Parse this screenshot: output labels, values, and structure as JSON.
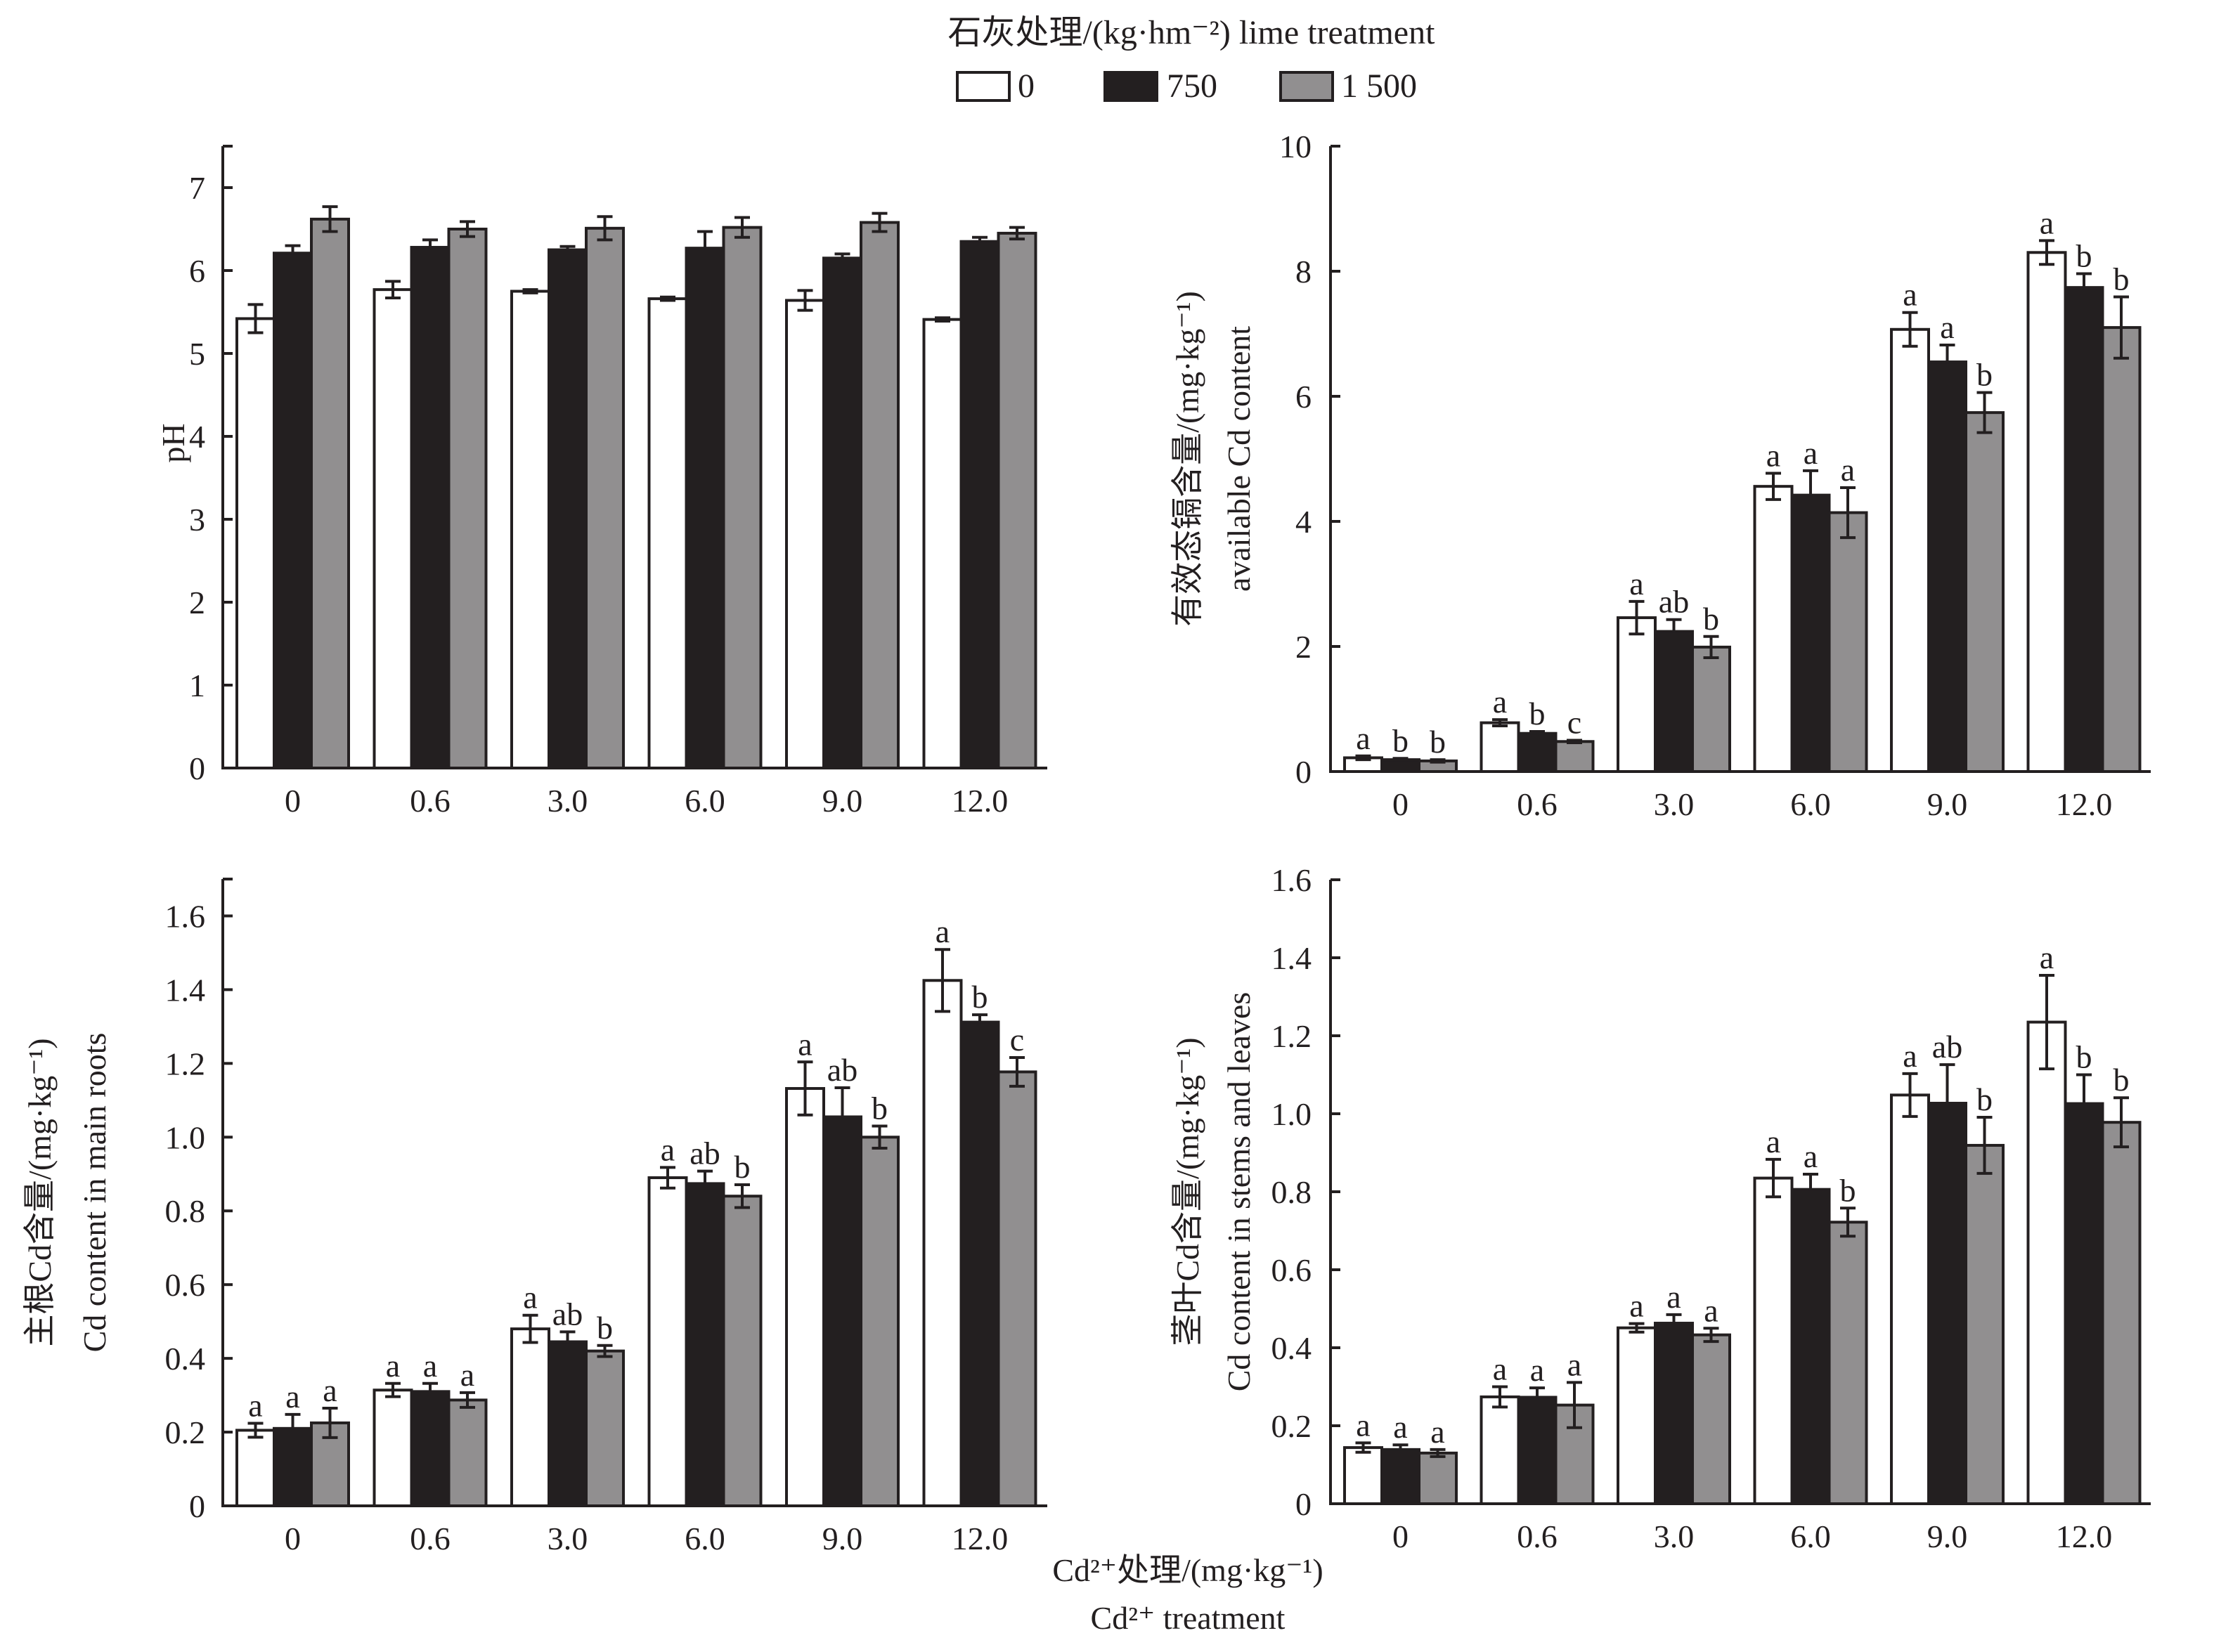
{
  "legend": {
    "title": "石灰处理/(kg·hm⁻²) lime treatment",
    "entries": [
      {
        "label": "0",
        "color": "#ffffff"
      },
      {
        "label": "750",
        "color": "#231f20"
      },
      {
        "label": "1 500",
        "color": "#918f90"
      }
    ]
  },
  "shared_xlabel": {
    "line1": "Cd²⁺处理/(mg·kg⁻¹)",
    "line2": "Cd²⁺ treatment"
  },
  "chart_data": [
    {
      "type": "bar",
      "panel": "top-left",
      "title": "",
      "ylabel": "pH",
      "ylabel_line2": "",
      "ylim": [
        0,
        7.5
      ],
      "yticks": [
        0,
        1,
        2,
        3,
        4,
        5,
        6,
        7
      ],
      "ytick_labels": [
        "0",
        "1",
        "2",
        "3",
        "4",
        "5",
        "6",
        "7"
      ],
      "categories": [
        "0",
        "0.6",
        "3.0",
        "6.0",
        "9.0",
        "12.0"
      ],
      "series": [
        {
          "name": "0",
          "values": [
            5.42,
            5.77,
            5.75,
            5.66,
            5.64,
            5.41
          ],
          "errors": [
            0.17,
            0.1,
            0.02,
            0.02,
            0.12,
            0.02
          ],
          "letters": []
        },
        {
          "name": "750",
          "values": [
            6.21,
            6.28,
            6.25,
            6.27,
            6.15,
            6.35
          ],
          "errors": [
            0.09,
            0.09,
            0.04,
            0.2,
            0.05,
            0.05
          ],
          "letters": []
        },
        {
          "name": "1 500",
          "values": [
            6.62,
            6.5,
            6.51,
            6.52,
            6.58,
            6.45
          ],
          "errors": [
            0.15,
            0.09,
            0.14,
            0.12,
            0.11,
            0.07
          ],
          "letters": []
        }
      ]
    },
    {
      "type": "bar",
      "panel": "top-right",
      "title": "",
      "ylabel": "有效态镉含量/(mg·kg⁻¹)",
      "ylabel_line2": "available Cd content",
      "ylim": [
        0,
        10
      ],
      "yticks": [
        0,
        2,
        4,
        6,
        8,
        10
      ],
      "ytick_labels": [
        "0",
        "2",
        "4",
        "6",
        "8",
        "10"
      ],
      "categories": [
        "0",
        "0.6",
        "3.0",
        "6.0",
        "9.0",
        "12.0"
      ],
      "series": [
        {
          "name": "0",
          "values": [
            0.22,
            0.78,
            2.46,
            4.56,
            7.07,
            8.3
          ],
          "errors": [
            0.03,
            0.05,
            0.26,
            0.21,
            0.27,
            0.19
          ],
          "letters": [
            "a",
            "a",
            "a",
            "a",
            "a",
            "a"
          ]
        },
        {
          "name": "750",
          "values": [
            0.19,
            0.61,
            2.24,
            4.42,
            6.55,
            7.74
          ],
          "errors": [
            0.02,
            0.03,
            0.19,
            0.39,
            0.27,
            0.22
          ],
          "letters": [
            "b",
            "b",
            "ab",
            "a",
            "a",
            "b"
          ]
        },
        {
          "name": "1 500",
          "values": [
            0.17,
            0.48,
            1.99,
            4.14,
            5.74,
            7.1
          ],
          "errors": [
            0.02,
            0.02,
            0.17,
            0.4,
            0.32,
            0.49
          ],
          "letters": [
            "b",
            "c",
            "b",
            "a",
            "b",
            "b"
          ]
        }
      ]
    },
    {
      "type": "bar",
      "panel": "bottom-left",
      "title": "",
      "ylabel": "主根Cd含量/(mg·kg⁻¹)",
      "ylabel_line2": "Cd content in main roots",
      "ylim": [
        0,
        1.7
      ],
      "yticks": [
        0,
        0.2,
        0.4,
        0.6,
        0.8,
        1.0,
        1.2,
        1.4,
        1.6
      ],
      "ytick_labels": [
        "0",
        "0.2",
        "0.4",
        "0.6",
        "0.8",
        "1.0",
        "1.2",
        "1.4",
        "1.6"
      ],
      "categories": [
        "0",
        "0.6",
        "3.0",
        "6.0",
        "9.0",
        "12.0"
      ],
      "series": [
        {
          "name": "0",
          "values": [
            0.205,
            0.314,
            0.48,
            0.89,
            1.132,
            1.425
          ],
          "errors": [
            0.019,
            0.018,
            0.037,
            0.028,
            0.072,
            0.084
          ],
          "letters": [
            "a",
            "a",
            "a",
            "a",
            "a",
            "a"
          ]
        },
        {
          "name": "750",
          "values": [
            0.21,
            0.31,
            0.445,
            0.874,
            1.055,
            1.312
          ],
          "errors": [
            0.038,
            0.022,
            0.027,
            0.034,
            0.079,
            0.02
          ],
          "letters": [
            "a",
            "a",
            "ab",
            "ab",
            "ab",
            "b"
          ]
        },
        {
          "name": "1 500",
          "values": [
            0.225,
            0.287,
            0.42,
            0.84,
            1.0,
            1.177
          ],
          "errors": [
            0.04,
            0.02,
            0.015,
            0.031,
            0.03,
            0.039
          ],
          "letters": [
            "a",
            "a",
            "b",
            "b",
            "b",
            "c"
          ]
        }
      ]
    },
    {
      "type": "bar",
      "panel": "bottom-right",
      "title": "",
      "ylabel": "茎叶Cd含量/(mg·kg⁻¹)",
      "ylabel_line2": "Cd content in stems and leaves",
      "ylim": [
        0,
        1.6
      ],
      "yticks": [
        0,
        0.2,
        0.4,
        0.6,
        0.8,
        1.0,
        1.2,
        1.4,
        1.6
      ],
      "ytick_labels": [
        "0",
        "0.2",
        "0.4",
        "0.6",
        "0.8",
        "1.0",
        "1.2",
        "1.4",
        "1.6"
      ],
      "categories": [
        "0",
        "0.6",
        "3.0",
        "6.0",
        "9.0",
        "12.0"
      ],
      "series": [
        {
          "name": "0",
          "values": [
            0.144,
            0.274,
            0.451,
            0.835,
            1.048,
            1.235
          ],
          "errors": [
            0.012,
            0.026,
            0.011,
            0.048,
            0.055,
            0.12
          ],
          "letters": [
            "a",
            "a",
            "a",
            "a",
            "a",
            "a"
          ]
        },
        {
          "name": "750",
          "values": [
            0.139,
            0.273,
            0.463,
            0.806,
            1.027,
            1.026
          ],
          "errors": [
            0.012,
            0.024,
            0.022,
            0.039,
            0.099,
            0.074
          ],
          "letters": [
            "a",
            "a",
            "a",
            "a",
            "ab",
            "b"
          ]
        },
        {
          "name": "1 500",
          "values": [
            0.13,
            0.253,
            0.433,
            0.722,
            0.919,
            0.978
          ],
          "errors": [
            0.009,
            0.058,
            0.017,
            0.036,
            0.072,
            0.063
          ],
          "letters": [
            "a",
            "a",
            "a",
            "b",
            "b",
            "b"
          ]
        }
      ]
    }
  ]
}
